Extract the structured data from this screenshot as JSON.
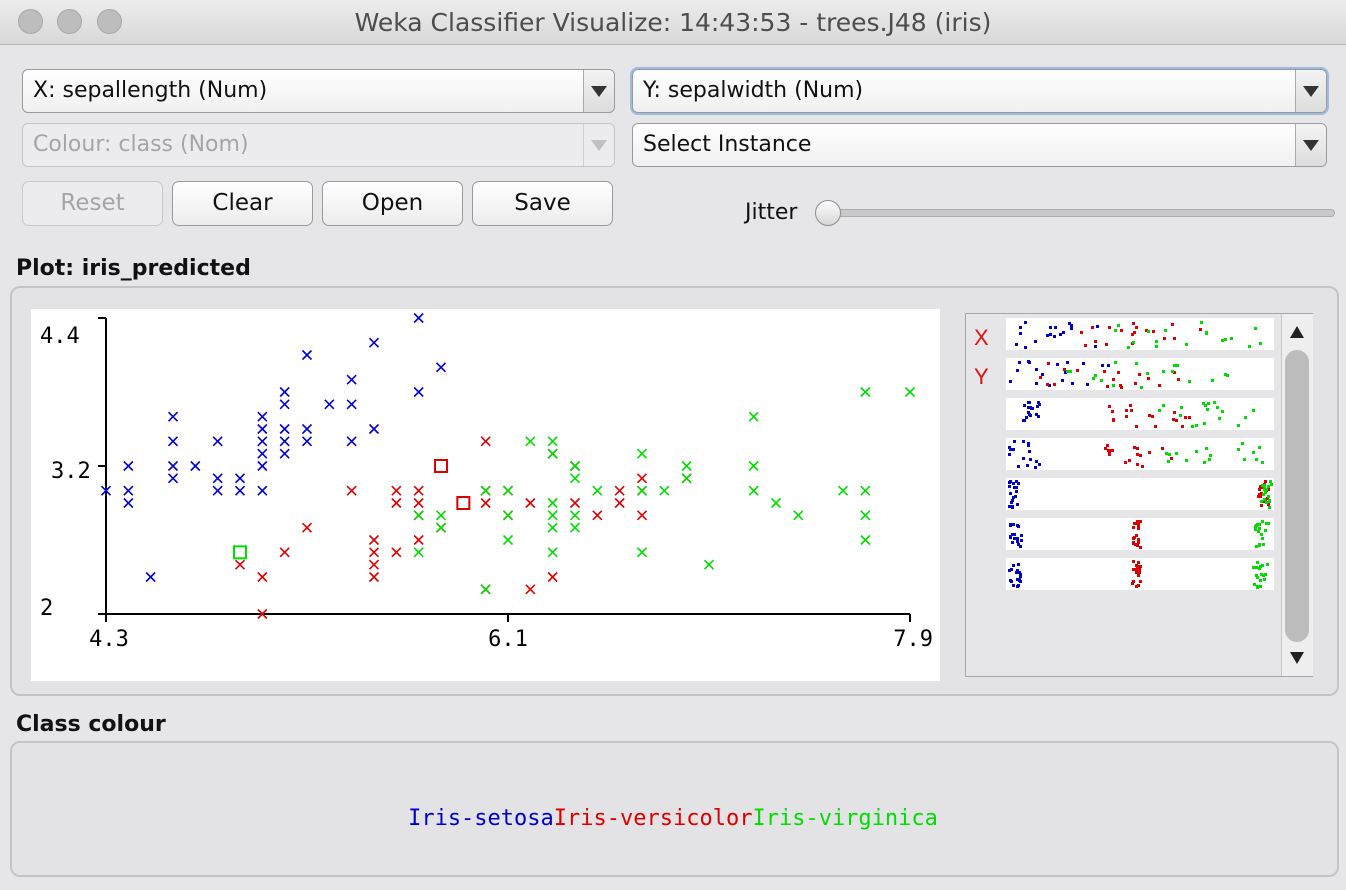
{
  "window": {
    "title": "Weka Classifier Visualize: 14:43:53 - trees.J48 (iris)"
  },
  "controls": {
    "x_axis": "X: sepallength (Num)",
    "y_axis": "Y: sepalwidth (Num)",
    "colour": "Colour: class (Nom)",
    "select_instance": "Select Instance",
    "reset_label": "Reset",
    "clear_label": "Clear",
    "open_label": "Open",
    "save_label": "Save",
    "jitter_label": "Jitter",
    "jitter_value": 0
  },
  "plot": {
    "label": "Plot: iris_predicted",
    "mini_x_label": "X",
    "mini_y_label": "Y"
  },
  "class_colour": {
    "label": "Class colour",
    "classes": [
      {
        "name": "Iris-setosa",
        "color": "#0000cc"
      },
      {
        "name": "Iris-versicolor",
        "color": "#dd0000"
      },
      {
        "name": "Iris-virginica",
        "color": "#00dd00"
      }
    ]
  },
  "chart_data": {
    "type": "scatter",
    "xlim": [
      4.3,
      7.9
    ],
    "ylim": [
      2.0,
      4.4
    ],
    "x_ticks": [
      "4.3",
      "6.1",
      "7.9"
    ],
    "y_ticks": [
      "4.4",
      "3.2",
      "2"
    ],
    "series": [
      {
        "name": "Iris-setosa",
        "color": "#0000cc",
        "points": [
          [
            4.3,
            3.0
          ],
          [
            4.4,
            2.9
          ],
          [
            4.4,
            3.0
          ],
          [
            4.4,
            3.2
          ],
          [
            4.5,
            2.3
          ],
          [
            4.6,
            3.1
          ],
          [
            4.6,
            3.2
          ],
          [
            4.6,
            3.4
          ],
          [
            4.6,
            3.6
          ],
          [
            4.7,
            3.2
          ],
          [
            4.8,
            3.0
          ],
          [
            4.8,
            3.1
          ],
          [
            4.8,
            3.4
          ],
          [
            4.9,
            3.0
          ],
          [
            4.9,
            3.1
          ],
          [
            5.0,
            3.0
          ],
          [
            5.0,
            3.2
          ],
          [
            5.0,
            3.3
          ],
          [
            5.0,
            3.4
          ],
          [
            5.0,
            3.5
          ],
          [
            5.0,
            3.6
          ],
          [
            5.1,
            3.3
          ],
          [
            5.1,
            3.4
          ],
          [
            5.1,
            3.5
          ],
          [
            5.1,
            3.7
          ],
          [
            5.1,
            3.8
          ],
          [
            5.2,
            3.4
          ],
          [
            5.2,
            3.5
          ],
          [
            5.2,
            4.1
          ],
          [
            5.3,
            3.7
          ],
          [
            5.4,
            3.4
          ],
          [
            5.4,
            3.7
          ],
          [
            5.4,
            3.9
          ],
          [
            5.5,
            3.5
          ],
          [
            5.5,
            4.2
          ],
          [
            5.7,
            3.8
          ],
          [
            5.7,
            4.4
          ],
          [
            5.8,
            4.0
          ]
        ]
      },
      {
        "name": "Iris-versicolor",
        "color": "#dd0000",
        "points": [
          [
            4.9,
            2.4
          ],
          [
            5.0,
            2.0
          ],
          [
            5.0,
            2.3
          ],
          [
            5.1,
            2.5
          ],
          [
            5.2,
            2.7
          ],
          [
            5.4,
            3.0
          ],
          [
            5.5,
            2.3
          ],
          [
            5.5,
            2.4
          ],
          [
            5.5,
            2.5
          ],
          [
            5.5,
            2.6
          ],
          [
            5.6,
            2.5
          ],
          [
            5.6,
            2.9
          ],
          [
            5.6,
            3.0
          ],
          [
            5.7,
            2.6
          ],
          [
            5.7,
            2.8
          ],
          [
            5.7,
            2.9
          ],
          [
            5.7,
            3.0
          ],
          [
            5.8,
            2.7
          ],
          [
            6.0,
            3.0
          ],
          [
            6.0,
            2.9
          ],
          [
            6.0,
            2.2
          ],
          [
            6.0,
            3.4
          ],
          [
            6.1,
            2.8
          ],
          [
            6.1,
            3.0
          ],
          [
            6.2,
            2.2
          ],
          [
            6.2,
            2.9
          ],
          [
            6.3,
            2.3
          ],
          [
            6.3,
            3.3
          ],
          [
            6.4,
            2.9
          ],
          [
            6.4,
            3.2
          ],
          [
            6.5,
            2.8
          ],
          [
            6.6,
            2.9
          ],
          [
            6.6,
            3.0
          ],
          [
            6.7,
            3.0
          ],
          [
            6.7,
            3.1
          ],
          [
            6.7,
            2.8
          ],
          [
            6.9,
            3.1
          ]
        ]
      },
      {
        "name": "Iris-virginica",
        "color": "#00dd00",
        "points": [
          [
            5.7,
            2.5
          ],
          [
            5.7,
            2.8
          ],
          [
            5.8,
            2.7
          ],
          [
            5.8,
            2.8
          ],
          [
            6.0,
            2.2
          ],
          [
            6.0,
            3.0
          ],
          [
            6.1,
            3.0
          ],
          [
            6.1,
            2.6
          ],
          [
            6.1,
            2.8
          ],
          [
            6.2,
            3.4
          ],
          [
            6.3,
            2.5
          ],
          [
            6.3,
            2.7
          ],
          [
            6.3,
            2.8
          ],
          [
            6.3,
            2.9
          ],
          [
            6.3,
            3.3
          ],
          [
            6.3,
            3.4
          ],
          [
            6.4,
            2.7
          ],
          [
            6.4,
            2.8
          ],
          [
            6.4,
            3.1
          ],
          [
            6.4,
            3.2
          ],
          [
            6.5,
            3.0
          ],
          [
            6.7,
            2.5
          ],
          [
            6.7,
            3.0
          ],
          [
            6.7,
            3.3
          ],
          [
            6.8,
            3.0
          ],
          [
            6.9,
            3.1
          ],
          [
            6.9,
            3.2
          ],
          [
            7.0,
            2.4
          ],
          [
            7.2,
            3.0
          ],
          [
            7.3,
            2.9
          ],
          [
            7.4,
            2.8
          ],
          [
            7.6,
            3.0
          ],
          [
            7.7,
            2.6
          ],
          [
            7.7,
            2.8
          ],
          [
            7.7,
            3.0
          ],
          [
            7.7,
            3.8
          ],
          [
            7.9,
            3.8
          ],
          [
            7.2,
            3.2
          ],
          [
            7.2,
            3.6
          ]
        ]
      }
    ],
    "misclassified": [
      {
        "x": 5.8,
        "y": 3.2,
        "color": "#dd0000"
      },
      {
        "x": 5.9,
        "y": 2.9,
        "color": "#dd0000"
      },
      {
        "x": 4.9,
        "y": 2.5,
        "color": "#00dd00"
      }
    ]
  }
}
